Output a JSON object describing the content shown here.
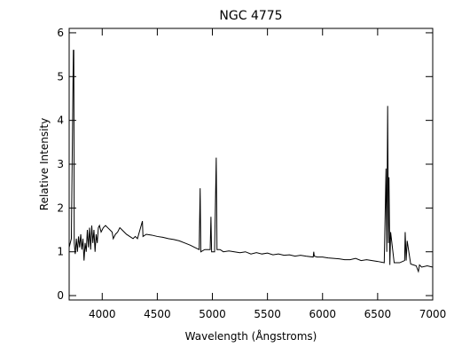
{
  "chart_data": {
    "type": "line",
    "title": "NGC 4775",
    "x_label": "Wavelength (Ångstroms)",
    "y_label": "Relative Intensity",
    "xlim": [
      3700,
      7000
    ],
    "xticks": [
      4000,
      4500,
      5000,
      5500,
      6000,
      6500,
      7000
    ],
    "ylim": [
      -0.1,
      6.1
    ],
    "yticks": [
      0,
      1,
      2,
      3,
      4,
      5,
      6
    ],
    "series": [
      {
        "color": "#000000",
        "x": [
          3700,
          3720,
          3738,
          3742,
          3746,
          3755,
          3765,
          3775,
          3785,
          3795,
          3805,
          3815,
          3825,
          3835,
          3845,
          3855,
          3865,
          3875,
          3885,
          3895,
          3905,
          3915,
          3925,
          3935,
          3945,
          3955,
          3965,
          3975,
          3990,
          4000,
          4010,
          4030,
          4050,
          4070,
          4090,
          4100,
          4120,
          4140,
          4160,
          4180,
          4200,
          4220,
          4250,
          4280,
          4300,
          4320,
          4365,
          4370,
          4400,
          4450,
          4500,
          4550,
          4600,
          4650,
          4700,
          4750,
          4800,
          4840,
          4880,
          4889,
          4895,
          4930,
          4980,
          4987,
          4993,
          5020,
          5035,
          5042,
          5070,
          5100,
          5150,
          5200,
          5250,
          5300,
          5350,
          5400,
          5450,
          5500,
          5550,
          5600,
          5650,
          5700,
          5750,
          5800,
          5850,
          5915,
          5920,
          5925,
          5950,
          6000,
          6050,
          6100,
          6150,
          6200,
          6250,
          6300,
          6350,
          6400,
          6450,
          6500,
          6560,
          6576,
          6583,
          6591,
          6598,
          6603,
          6611,
          6618,
          6650,
          6700,
          6745,
          6750,
          6759,
          6768,
          6800,
          6850,
          6870,
          6880,
          6900,
          6950,
          7000
        ],
        "values": [
          1.1,
          1.3,
          5.6,
          5.6,
          1.2,
          0.95,
          1.3,
          1.0,
          1.35,
          1.1,
          1.4,
          1.05,
          1.3,
          0.8,
          1.2,
          1.0,
          1.5,
          1.1,
          1.55,
          1.05,
          1.6,
          1.2,
          1.5,
          1.0,
          1.4,
          1.2,
          1.55,
          1.6,
          1.45,
          1.5,
          1.55,
          1.6,
          1.55,
          1.5,
          1.45,
          1.3,
          1.4,
          1.45,
          1.55,
          1.5,
          1.45,
          1.4,
          1.35,
          1.3,
          1.35,
          1.3,
          1.7,
          1.35,
          1.4,
          1.38,
          1.35,
          1.33,
          1.3,
          1.28,
          1.25,
          1.2,
          1.15,
          1.1,
          1.05,
          2.45,
          1.0,
          1.05,
          1.05,
          1.8,
          1.0,
          1.0,
          3.15,
          1.05,
          1.05,
          1.0,
          1.02,
          1.0,
          0.98,
          1.0,
          0.95,
          0.98,
          0.95,
          0.97,
          0.93,
          0.95,
          0.92,
          0.93,
          0.9,
          0.92,
          0.9,
          0.88,
          1.0,
          0.9,
          0.88,
          0.88,
          0.86,
          0.85,
          0.84,
          0.82,
          0.82,
          0.85,
          0.8,
          0.82,
          0.8,
          0.78,
          0.75,
          2.9,
          1.0,
          4.33,
          1.2,
          2.7,
          0.7,
          1.45,
          0.75,
          0.75,
          0.8,
          1.45,
          0.8,
          1.25,
          0.72,
          0.68,
          0.55,
          0.7,
          0.65,
          0.68,
          0.65
        ]
      }
    ]
  }
}
